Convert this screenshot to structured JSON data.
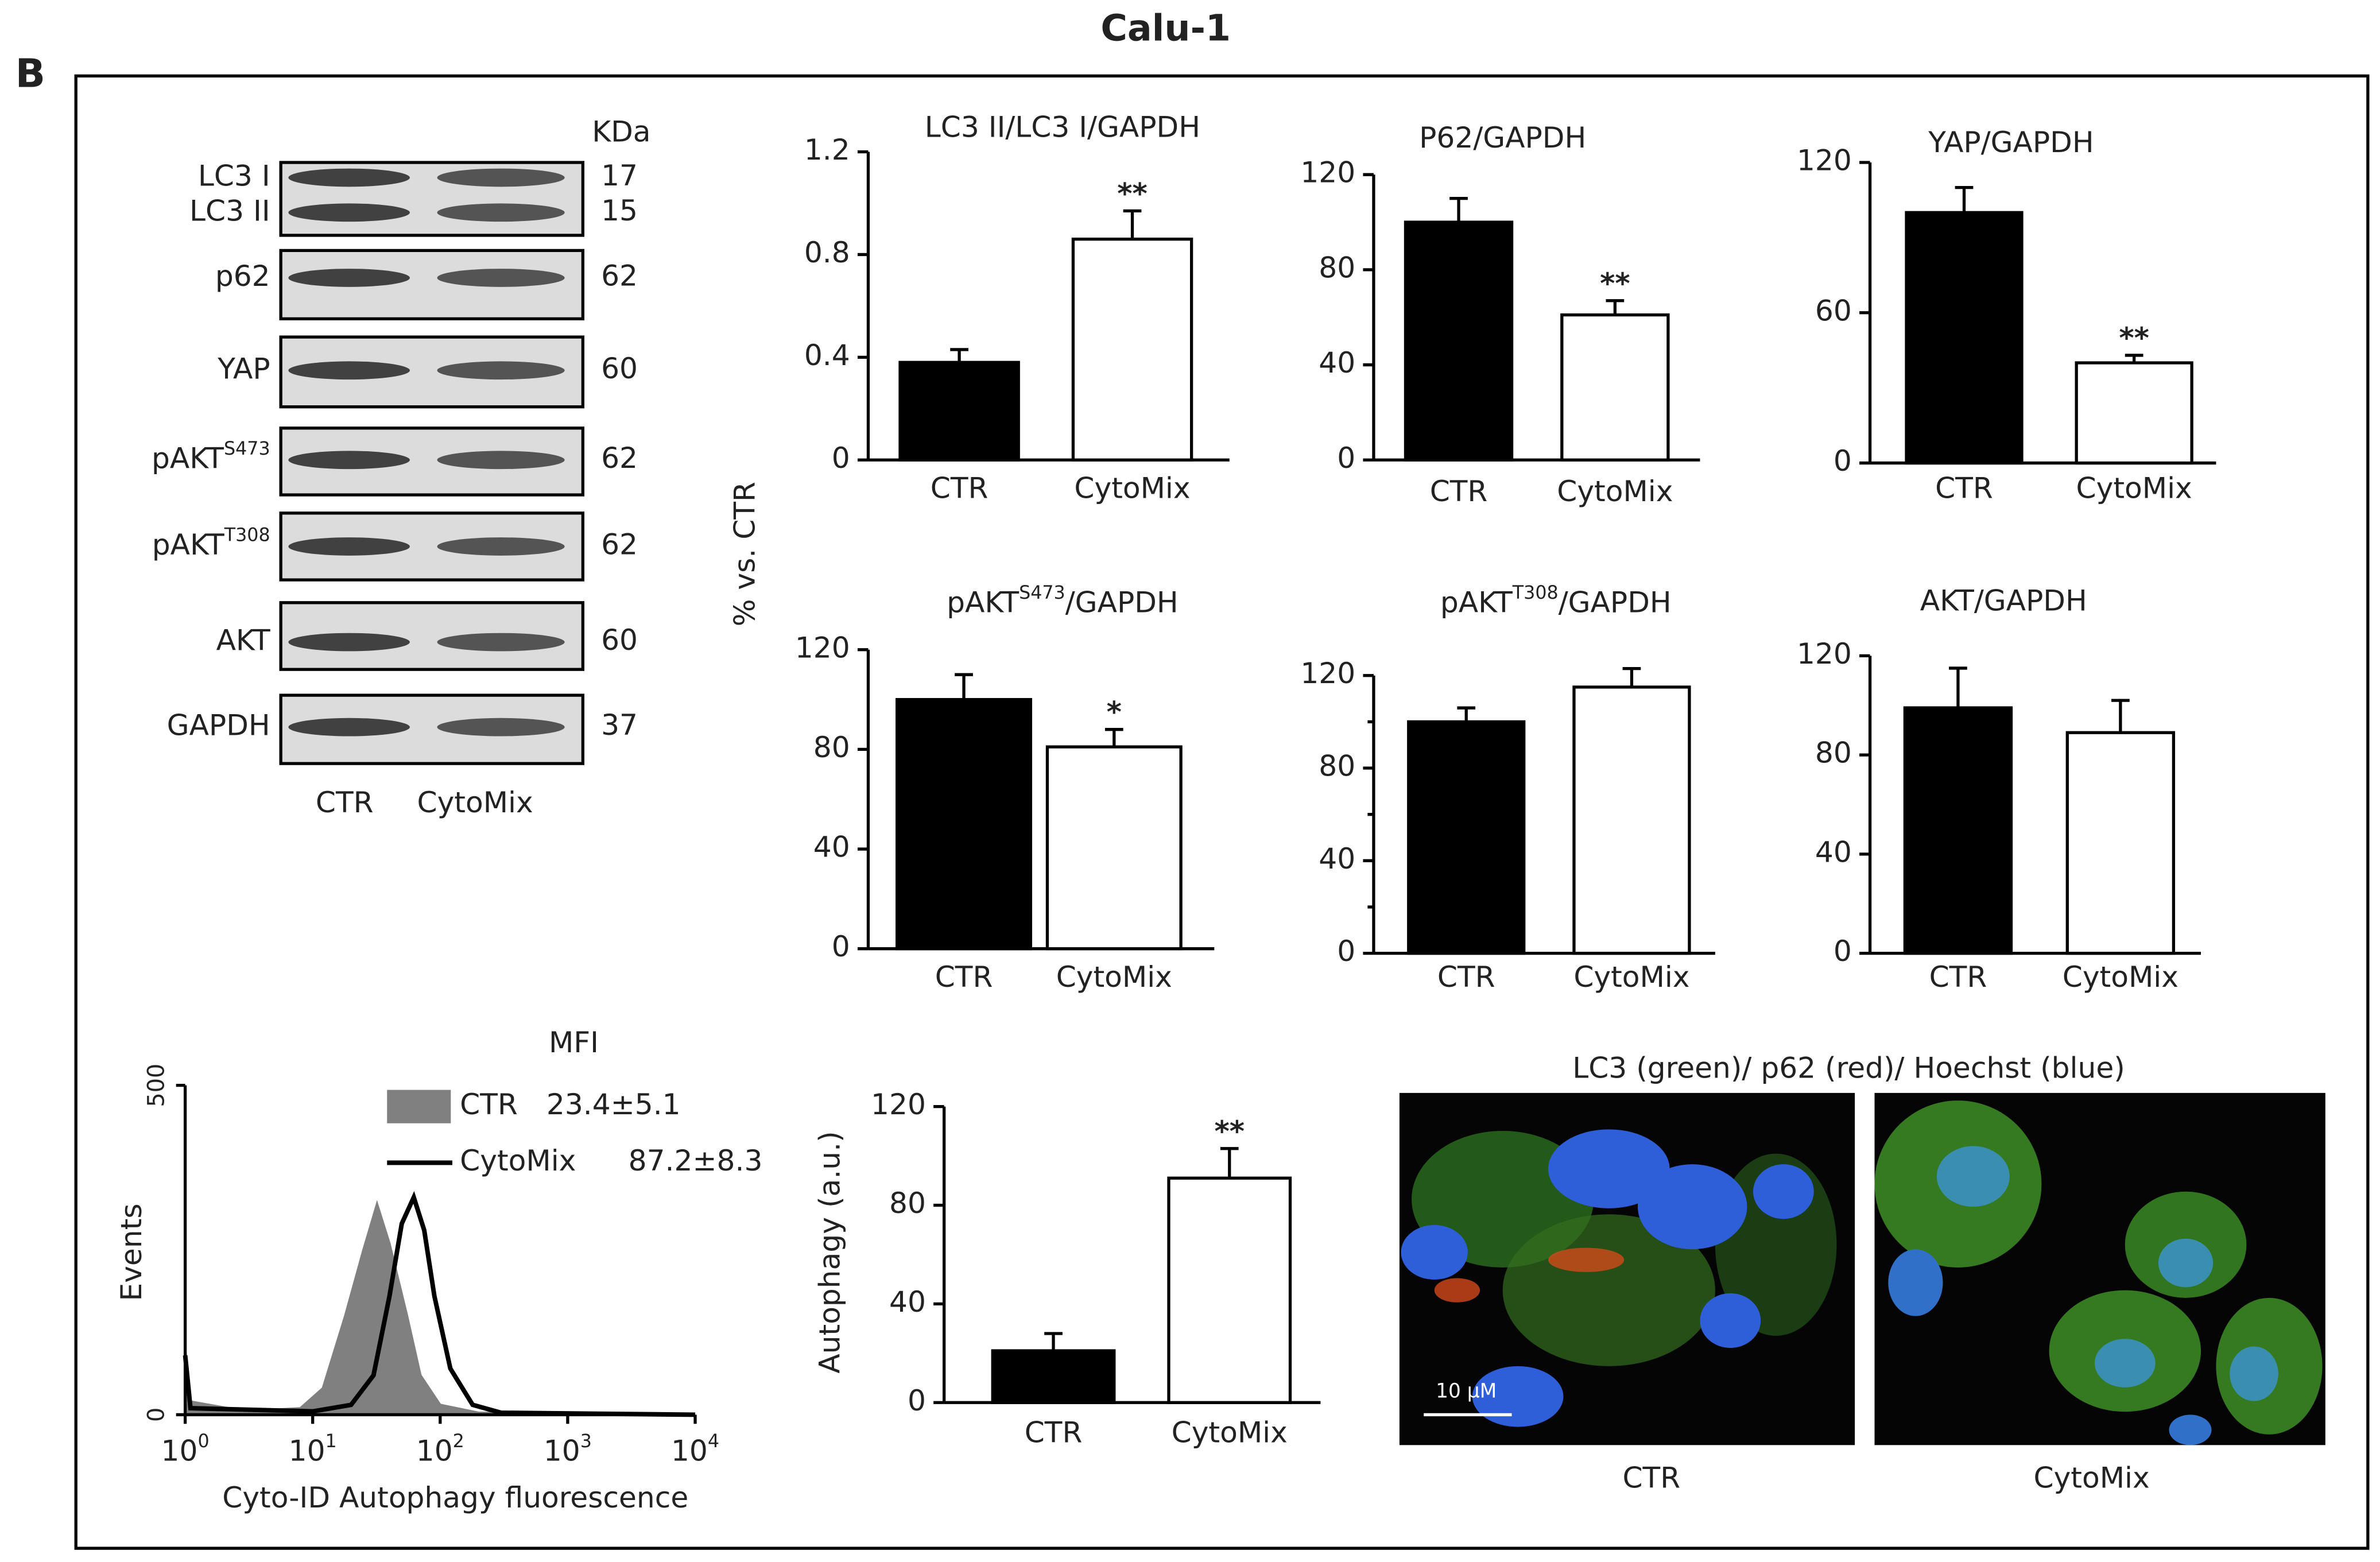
{
  "figure": {
    "title": "Calu-1",
    "panel": "B",
    "shared_ylabel": "% vs. CTR"
  },
  "blot": {
    "kda_header": "KDa",
    "lanes": [
      "CTR",
      "CytoMix"
    ],
    "rows": [
      {
        "label": "LC3 I",
        "kda": 17
      },
      {
        "label": "LC3 II",
        "kda": 15
      },
      {
        "label": "p62",
        "kda": 62
      },
      {
        "label": "YAP",
        "kda": 60
      },
      {
        "label": "pAKT",
        "sup": "S473",
        "kda": 62
      },
      {
        "label": "pAKT",
        "sup": "T308",
        "kda": 62
      },
      {
        "label": "AKT",
        "kda": 60
      },
      {
        "label": "GAPDH",
        "kda": 37
      }
    ]
  },
  "microscopy": {
    "title": "LC3 (green)/  p62 (red)/ Hoechst (blue)",
    "scale_bar": "10 µM",
    "panels": [
      "CTR",
      "CytoMix"
    ]
  },
  "chart_data": [
    {
      "type": "bar",
      "title": "LC3 II/LC3 I/GAPDH",
      "categories": [
        "CTR",
        "CytoMix"
      ],
      "values": [
        0.38,
        0.86
      ],
      "errors": [
        0.05,
        0.11
      ],
      "colors": [
        "#000000",
        "#ffffff"
      ],
      "significance": [
        null,
        "**"
      ],
      "ylim": [
        0,
        1.2
      ],
      "yticks": [
        0,
        0.4,
        0.8,
        1.2
      ]
    },
    {
      "type": "bar",
      "title": "P62/GAPDH",
      "categories": [
        "CTR",
        "CytoMix"
      ],
      "values": [
        100,
        61
      ],
      "errors": [
        10,
        6
      ],
      "colors": [
        "#000000",
        "#ffffff"
      ],
      "significance": [
        null,
        "**"
      ],
      "ylim": [
        0,
        120
      ],
      "yticks": [
        0,
        40,
        80,
        120
      ]
    },
    {
      "type": "bar",
      "title": "YAP/GAPDH",
      "categories": [
        "CTR",
        "CytoMix"
      ],
      "values": [
        100,
        40
      ],
      "errors": [
        10,
        3
      ],
      "colors": [
        "#000000",
        "#ffffff"
      ],
      "significance": [
        null,
        "**"
      ],
      "ylim": [
        0,
        120
      ],
      "yticks": [
        0,
        60,
        120
      ]
    },
    {
      "type": "bar",
      "title": {
        "text": "pAKT",
        "sup": "S473",
        "rest": "/GAPDH"
      },
      "categories": [
        "CTR",
        "CytoMix"
      ],
      "values": [
        100,
        81
      ],
      "errors": [
        10,
        7
      ],
      "colors": [
        "#000000",
        "#ffffff"
      ],
      "significance": [
        null,
        "*"
      ],
      "ylim": [
        0,
        120
      ],
      "yticks": [
        0,
        40,
        80,
        120
      ]
    },
    {
      "type": "bar",
      "title": {
        "text": "pAKT",
        "sup": "T308",
        "rest": "/GAPDH"
      },
      "categories": [
        "CTR",
        "CytoMix"
      ],
      "values": [
        100,
        115
      ],
      "errors": [
        6,
        8
      ],
      "colors": [
        "#000000",
        "#ffffff"
      ],
      "ylim": [
        0,
        120
      ],
      "yticks": [
        0,
        40,
        80,
        120
      ],
      "minor_yticks": [
        20,
        60,
        100
      ]
    },
    {
      "type": "bar",
      "title": "AKT/GAPDH",
      "categories": [
        "CTR",
        "CytoMix"
      ],
      "values": [
        99,
        89
      ],
      "errors": [
        16,
        13
      ],
      "colors": [
        "#000000",
        "#ffffff"
      ],
      "ylim": [
        0,
        120
      ],
      "yticks": [
        0,
        40,
        80,
        120
      ]
    },
    {
      "type": "histogram-line",
      "ylabel": "Events",
      "xlabel": "Cyto-ID Autophagy fluorescence",
      "legend_title": "MFI",
      "log_x": true,
      "xlim": [
        1,
        10000
      ],
      "xticks": [
        {
          "value": 1,
          "label": "10",
          "sup": "0"
        },
        {
          "value": 10,
          "label": "10",
          "sup": "1"
        },
        {
          "value": 100,
          "label": "10",
          "sup": "2"
        },
        {
          "value": 1000,
          "label": "10",
          "sup": "3"
        },
        {
          "value": 10000,
          "label": "10",
          "sup": "4"
        }
      ],
      "ylim": [
        0,
        500
      ],
      "yticks": [
        0,
        500
      ],
      "series": [
        {
          "name": "CTR",
          "mfi": "23.4±5.1",
          "color": "#808080",
          "filled": true,
          "x": [
            1,
            1.1,
            3,
            8,
            12,
            18,
            25,
            32,
            40,
            55,
            70,
            100,
            200,
            10000
          ],
          "values": [
            100,
            20,
            5,
            10,
            40,
            150,
            250,
            320,
            260,
            150,
            60,
            15,
            3,
            0
          ]
        },
        {
          "name": "CytoMix",
          "mfi": "87.2±8.3",
          "color": "#000000",
          "filled": false,
          "x": [
            1,
            1.1,
            10,
            20,
            30,
            40,
            50,
            62,
            75,
            90,
            120,
            180,
            300,
            10000
          ],
          "values": [
            90,
            10,
            5,
            15,
            60,
            180,
            290,
            330,
            280,
            180,
            70,
            15,
            3,
            0
          ]
        }
      ]
    },
    {
      "type": "bar",
      "ylabel": "Autophagy (a.u.)",
      "categories": [
        "CTR",
        "CytoMix"
      ],
      "values": [
        21,
        91
      ],
      "errors": [
        7,
        12
      ],
      "colors": [
        "#000000",
        "#ffffff"
      ],
      "significance": [
        null,
        "**"
      ],
      "ylim": [
        0,
        120
      ],
      "yticks": [
        0,
        40,
        80,
        120
      ]
    }
  ]
}
